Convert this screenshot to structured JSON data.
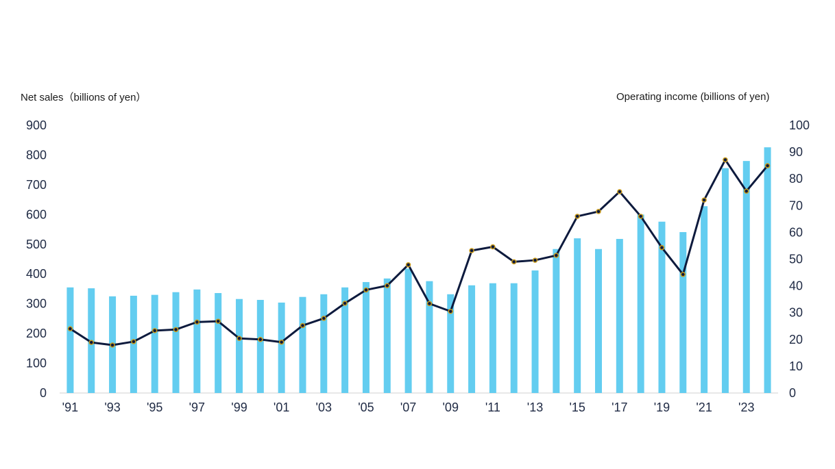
{
  "chart_data": {
    "type": "bar+line",
    "title": "",
    "y1label": "Net sales（billions of yen）",
    "y2label": "Operating income (billions of yen)",
    "y1lim": [
      0,
      900
    ],
    "y2lim": [
      0,
      100
    ],
    "y1ticks": [
      "0",
      "100",
      "200",
      "300",
      "400",
      "500",
      "600",
      "700",
      "800",
      "900"
    ],
    "y2ticks": [
      "0",
      "10",
      "20",
      "30",
      "40",
      "50",
      "60",
      "70",
      "80",
      "90",
      "100"
    ],
    "x_tick_labels": [
      "'91",
      "'93",
      "'95",
      "'97",
      "'99",
      "'01",
      "'03",
      "'05",
      "'07",
      "'09",
      "'11",
      "'13",
      "'15",
      "'17",
      "'19",
      "'21",
      "'23"
    ],
    "categories": [
      "'91",
      "'92",
      "'93",
      "'94",
      "'95",
      "'96",
      "'97",
      "'98",
      "'99",
      "'00",
      "'01",
      "'02",
      "'03",
      "'04",
      "'05",
      "'06",
      "'07",
      "'08",
      "'09",
      "'10",
      "'11",
      "'12",
      "'13",
      "'14",
      "'15",
      "'16",
      "'17",
      "'18",
      "'19",
      "'20",
      "'21",
      "'22",
      "'23",
      "'24"
    ],
    "series": [
      {
        "name": "Net sales",
        "type": "bar",
        "axis": "left",
        "color": "#63cdf0",
        "values": [
          355,
          352,
          325,
          327,
          330,
          339,
          348,
          336,
          316,
          313,
          304,
          323,
          332,
          355,
          373,
          385,
          418,
          376,
          332,
          362,
          369,
          369,
          412,
          484,
          520,
          484,
          518,
          600,
          576,
          541,
          628,
          756,
          780,
          826
        ]
      },
      {
        "name": "Operating income",
        "type": "line",
        "axis": "right",
        "color": "#0d1a3d",
        "marker_color": "#c99a1a",
        "values": [
          24,
          18.9,
          17.9,
          19.2,
          23.3,
          23.7,
          26.5,
          26.8,
          20.4,
          20,
          19,
          25.2,
          27.9,
          33.5,
          38.5,
          40.1,
          47.9,
          33.4,
          30.5,
          53.2,
          54.6,
          49,
          49.6,
          51.4,
          66,
          67.8,
          75.2,
          66,
          54.3,
          44.3,
          72.1,
          87.1,
          75.4,
          84.9
        ]
      }
    ],
    "grid": false,
    "legend": "none"
  }
}
